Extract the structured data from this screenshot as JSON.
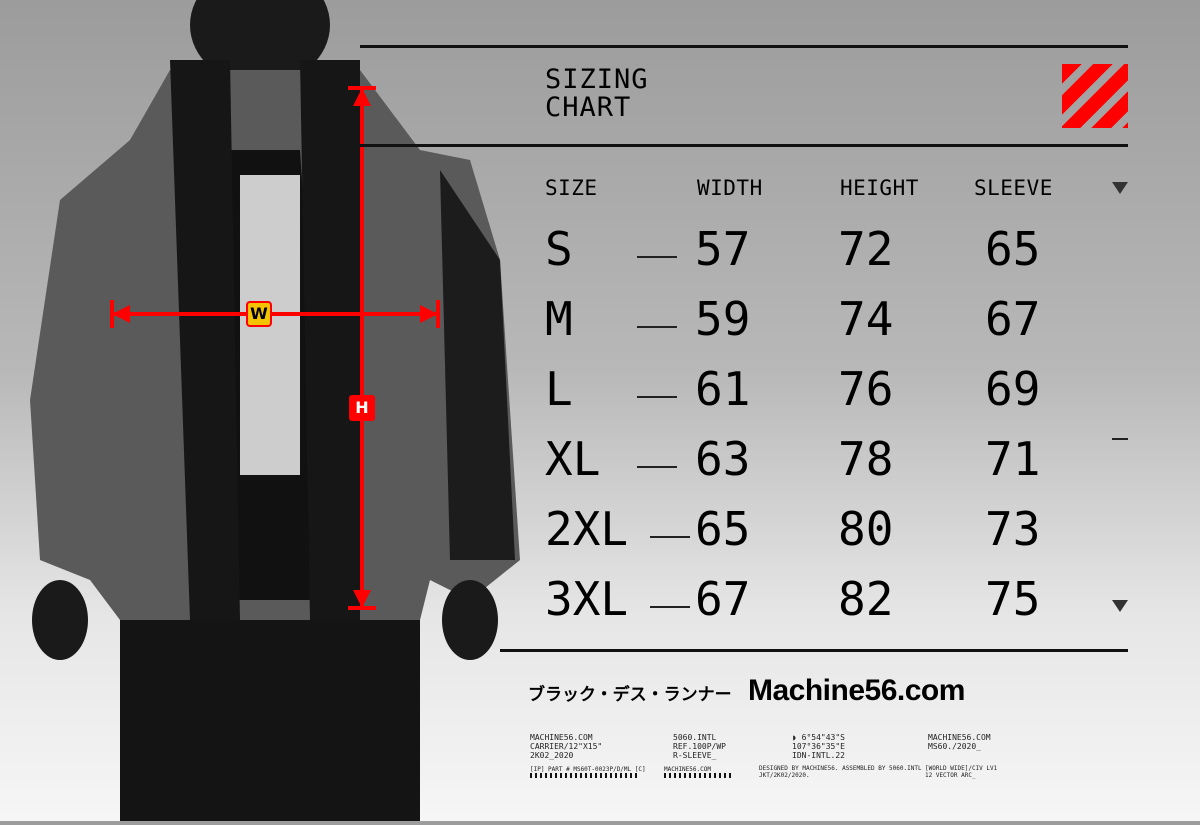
{
  "title": {
    "line1": "SIZING",
    "line2": "CHART"
  },
  "colors": {
    "accent": "#ff0000",
    "badge_w": "#f5c400"
  },
  "table": {
    "headers": [
      "SIZE",
      "WIDTH",
      "HEIGHT",
      "SLEEVE"
    ],
    "rows": [
      {
        "size": "S",
        "width": "57",
        "height": "72",
        "sleeve": "65"
      },
      {
        "size": "M",
        "width": "59",
        "height": "74",
        "sleeve": "67"
      },
      {
        "size": "L",
        "width": "61",
        "height": "76",
        "sleeve": "69"
      },
      {
        "size": "XL",
        "width": "63",
        "height": "78",
        "sleeve": "71"
      },
      {
        "size": "2XL",
        "width": "65",
        "height": "80",
        "sleeve": "73"
      },
      {
        "size": "3XL",
        "width": "67",
        "height": "82",
        "sleeve": "75"
      }
    ]
  },
  "measure": {
    "width_label": "W",
    "height_label": "H"
  },
  "footer": {
    "japanese": "ブラック・デス・ランナー",
    "brand": "Machine56.com",
    "col1": "MACHINE56.COM\nCARRIER/12\"X15\"\n2K02_2020",
    "col2": "5060.INTL\nREF.100P/WP\nR-SLEEVE_",
    "col3": "◗ 6°54\"43\"S\n107°36\"35\"E\nIDN-INTL.22",
    "col4": "MACHINE56.COM\nMS60./2020_",
    "fine1": "[IP] PART # MS60T-0023P/D/ML [C]",
    "fine2": "MACHINE56.COM",
    "fine3": "DESIGNED BY MACHINE56. ASSEMBLED BY 5060.INTL\nJKT/2K02/2020.",
    "fine4": "[WORLD WIDE]/CIV LV1\n12 VECTOR ARC_"
  }
}
